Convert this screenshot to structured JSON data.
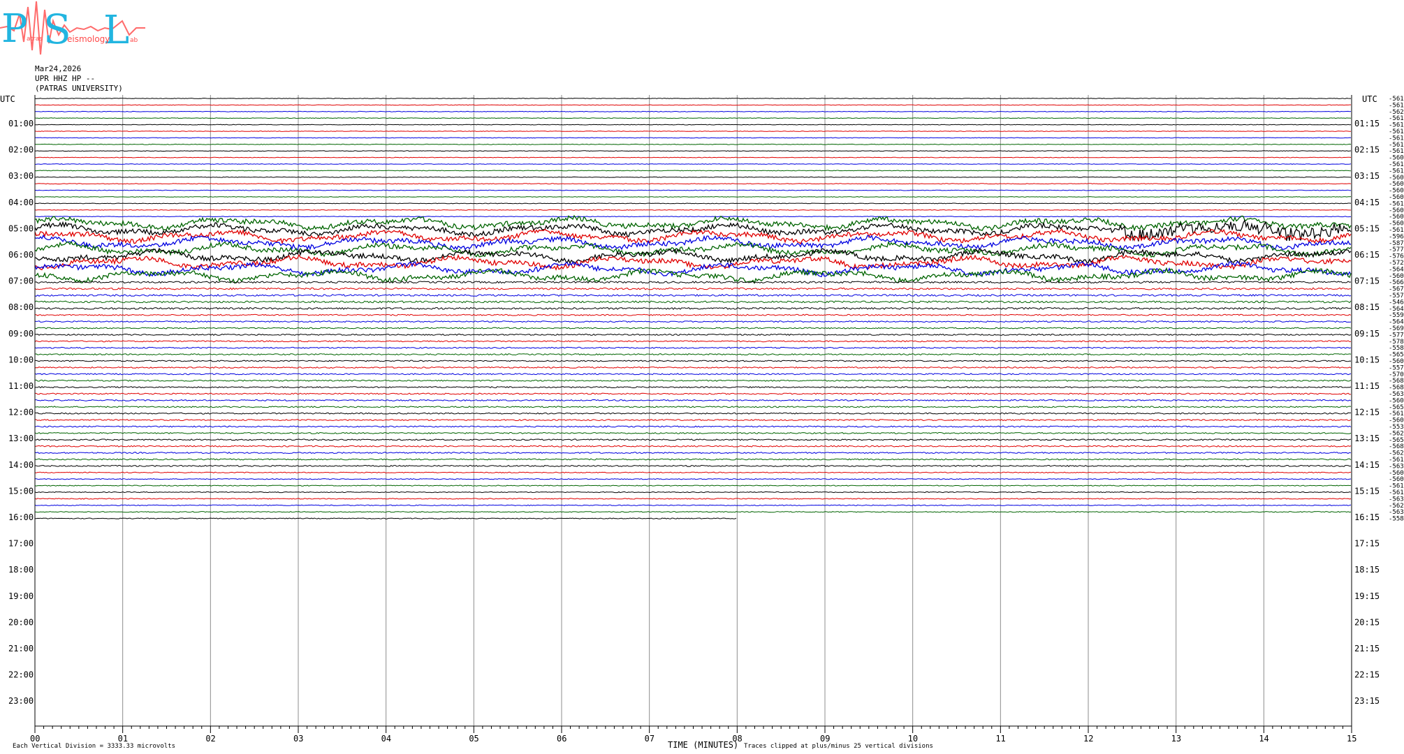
{
  "logo": {
    "letters": [
      "P",
      "S",
      "L"
    ],
    "words": [
      "atras",
      "eismology",
      "ab"
    ]
  },
  "header": {
    "date": "Mar24,2026",
    "station": "UPR HHZ HP --",
    "institution": "(PATRAS UNIVERSITY)"
  },
  "footer": {
    "left_note": "Each Vertical Division = 3333.33 microvolts",
    "xlabel": "TIME (MINUTES)",
    "right_note": "Traces clipped at plus/minus 25 vertical divisions"
  },
  "chart_data": {
    "type": "line",
    "title": "",
    "left_axis_title": "UTC",
    "right_axis_title": "UTC",
    "x": [
      "00",
      "01",
      "02",
      "03",
      "04",
      "05",
      "06",
      "07",
      "08",
      "09",
      "10",
      "11",
      "12",
      "13",
      "14",
      "15"
    ],
    "xlim": [
      0,
      15
    ],
    "left_hour_labels": [
      "01:00",
      "02:00",
      "03:00",
      "04:00",
      "05:00",
      "06:00",
      "07:00",
      "08:00",
      "09:00",
      "10:00",
      "11:00",
      "12:00",
      "13:00",
      "14:00",
      "15:00",
      "16:00",
      "17:00",
      "18:00",
      "19:00",
      "20:00",
      "21:00",
      "22:00",
      "23:00"
    ],
    "right_hour_labels": [
      "01:15",
      "02:15",
      "03:15",
      "04:15",
      "05:15",
      "06:15",
      "07:15",
      "08:15",
      "09:15",
      "10:15",
      "11:15",
      "12:15",
      "13:15",
      "14:15",
      "15:15",
      "16:15",
      "17:15",
      "18:15",
      "19:15",
      "20:15",
      "21:15",
      "22:15",
      "23:15"
    ],
    "trace_colors": [
      "#000000",
      "#e00000",
      "#0000e0",
      "#006400"
    ],
    "trace_count": 65,
    "last_trace_end_minute": 8,
    "trace_offsets": [
      "-5613",
      "-5618",
      "-5623",
      "-5616",
      "-5612",
      "-5612",
      "-5612",
      "-5616",
      "-5611",
      "-5609",
      "-5610",
      "-5610",
      "-5608",
      "-5609",
      "-5608",
      "-5609",
      "-5610",
      "-5609",
      "-5609",
      "-5609",
      "-5614",
      "-5963",
      "-5874",
      "-5776",
      "-5767",
      "-5720",
      "-5649",
      "-5605",
      "-5664",
      "-5673",
      "-5579",
      "-5467",
      "-5649",
      "-5593",
      "-5647",
      "-5694",
      "-5776",
      "-5788",
      "-5584",
      "-5654",
      "-5602",
      "-5578",
      "-5701",
      "-5680",
      "-5681",
      "-5635",
      "-5605",
      "-5654",
      "-5614",
      "-5606",
      "-5538",
      "-5627",
      "-5653",
      "-5680",
      "-5627",
      "-5611",
      "-5630",
      "-5606",
      "-5602",
      "-5614",
      "-5611",
      "-5632",
      "-5624",
      "-5638",
      "-5585"
    ]
  }
}
